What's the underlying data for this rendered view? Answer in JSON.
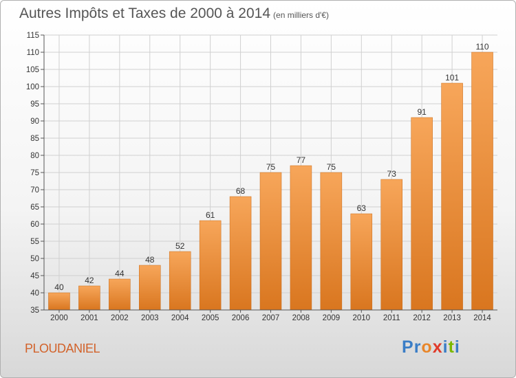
{
  "header": {
    "title": "Autres Impôts et Taxes de 2000 à 2014",
    "unit": "(en milliers d'€)"
  },
  "footer": {
    "place": "PLOUDANIEL",
    "logo": [
      "P",
      "r",
      "o",
      "x",
      "i",
      "t",
      "i"
    ]
  },
  "colors": {
    "bar_light": "#f7a65a",
    "bar_dark": "#d9761f",
    "bar_edge": "#c86a17",
    "grid": "#d0d0d0",
    "logo": [
      "#3a7dc6",
      "#3a7dc6",
      "#e8862a",
      "#e03a2a",
      "#3a7dc6",
      "#7ab800",
      "#3a7dc6"
    ]
  },
  "chart_data": {
    "type": "bar",
    "title": "Autres Impôts et Taxes de 2000 à 2014",
    "subtitle": "(en milliers d'€)",
    "categories": [
      "2000",
      "2001",
      "2002",
      "2003",
      "2004",
      "2005",
      "2006",
      "2007",
      "2008",
      "2009",
      "2010",
      "2011",
      "2012",
      "2013",
      "2014"
    ],
    "values": [
      40,
      42,
      44,
      48,
      52,
      61,
      68,
      75,
      77,
      75,
      63,
      73,
      91,
      101,
      110
    ],
    "ylim": [
      35,
      115
    ],
    "yticks": [
      35,
      40,
      45,
      50,
      55,
      60,
      65,
      70,
      75,
      80,
      85,
      90,
      95,
      100,
      105,
      110,
      115
    ],
    "grid": true,
    "xlabel": "",
    "ylabel": ""
  }
}
